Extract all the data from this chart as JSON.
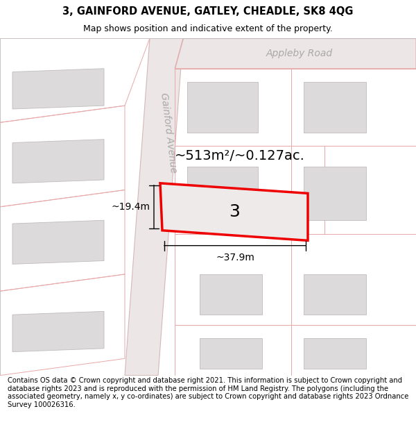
{
  "title": "3, GAINFORD AVENUE, GATLEY, CHEADLE, SK8 4QG",
  "subtitle": "Map shows position and indicative extent of the property.",
  "footer": "Contains OS data © Crown copyright and database right 2021. This information is subject to Crown copyright and database rights 2023 and is reproduced with the permission of HM Land Registry. The polygons (including the associated geometry, namely x, y co-ordinates) are subject to Crown copyright and database rights 2023 Ordnance Survey 100026316.",
  "map_bg": "#f7f4f4",
  "road_fill": "#ece6e6",
  "road_edge": "#d4b8b8",
  "plot_edge": "#e8a8a8",
  "building_fill": "#dcdada",
  "building_edge": "#c0bcbc",
  "highlight_fill": "#eeeaea",
  "highlight_edge": "#ee0000",
  "area_text": "~513m²/~0.127ac.",
  "width_text": "~37.9m",
  "height_text": "~19.4m",
  "road_label_1": "Appleby Road",
  "road_label_2": "Gainford Avenue",
  "title_fontsize": 10.5,
  "subtitle_fontsize": 9,
  "footer_fontsize": 7.2,
  "area_fontsize": 14,
  "label_fontsize": 10,
  "dim_fontsize": 10,
  "number_fontsize": 18
}
